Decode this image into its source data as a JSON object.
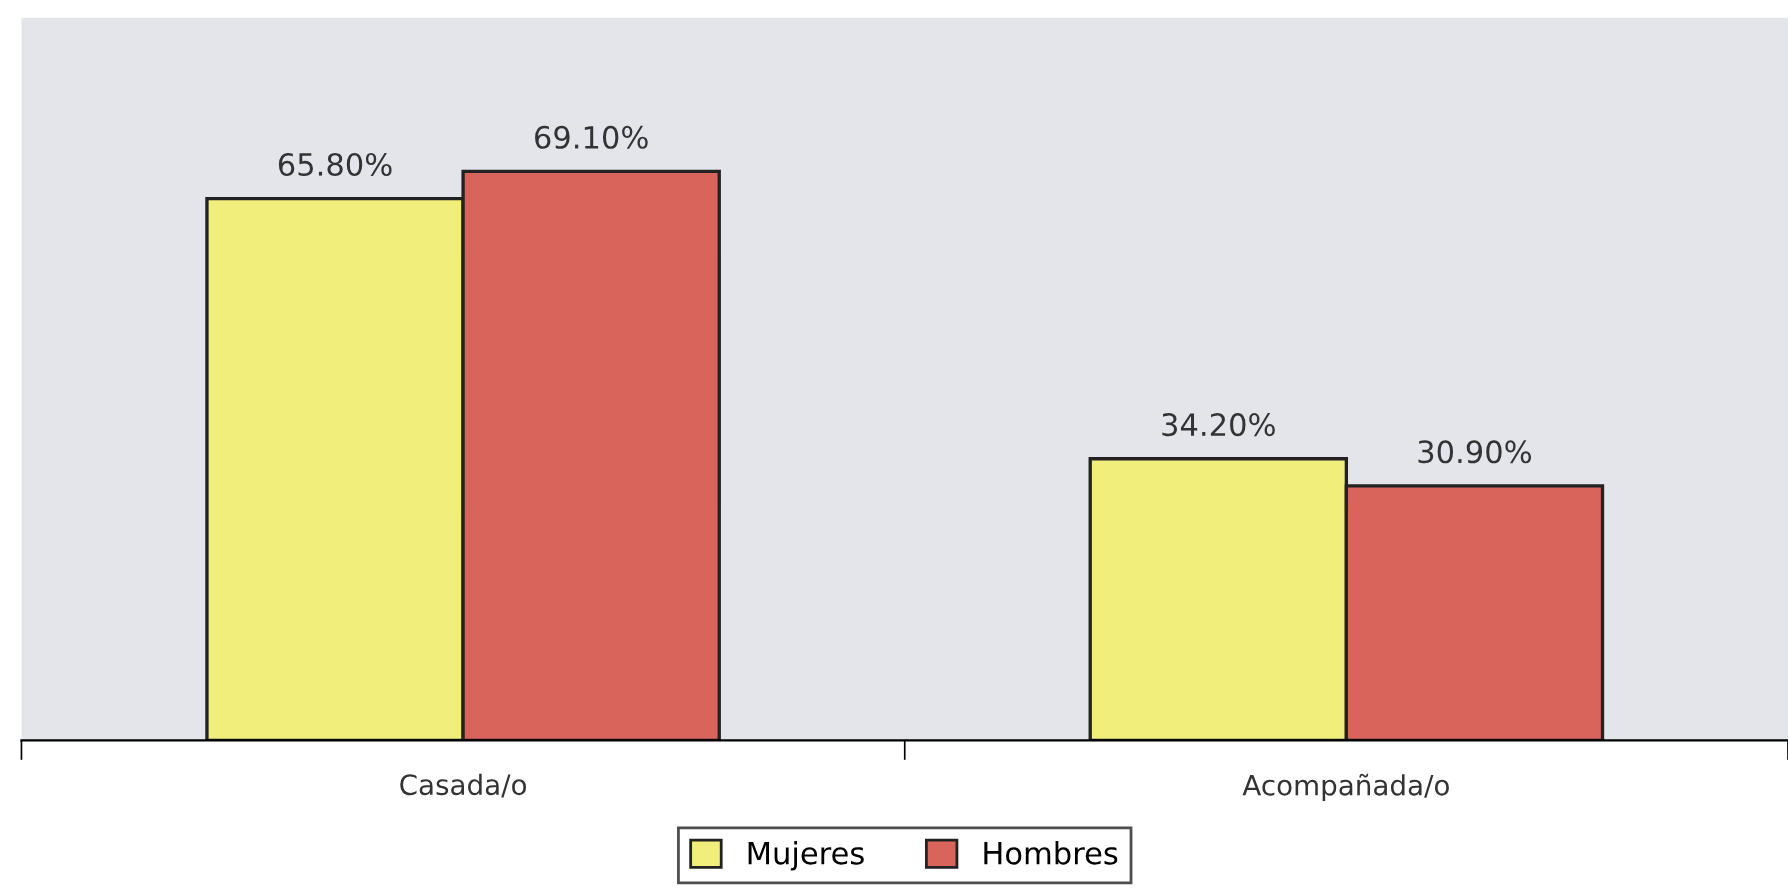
{
  "chart_data": {
    "type": "bar",
    "categories": [
      "Casada/o",
      "Acompañada/o"
    ],
    "series": [
      {
        "name": "Mujeres",
        "color": "#f2ee7c",
        "values": [
          65.8,
          34.2
        ],
        "value_labels": [
          "65.80%",
          "34.20%"
        ]
      },
      {
        "name": "Hombres",
        "color": "#d8645c",
        "values": [
          69.1,
          30.9
        ],
        "value_labels": [
          "69.10%",
          "30.90%"
        ]
      }
    ],
    "legend": "bottom",
    "grid": false
  }
}
